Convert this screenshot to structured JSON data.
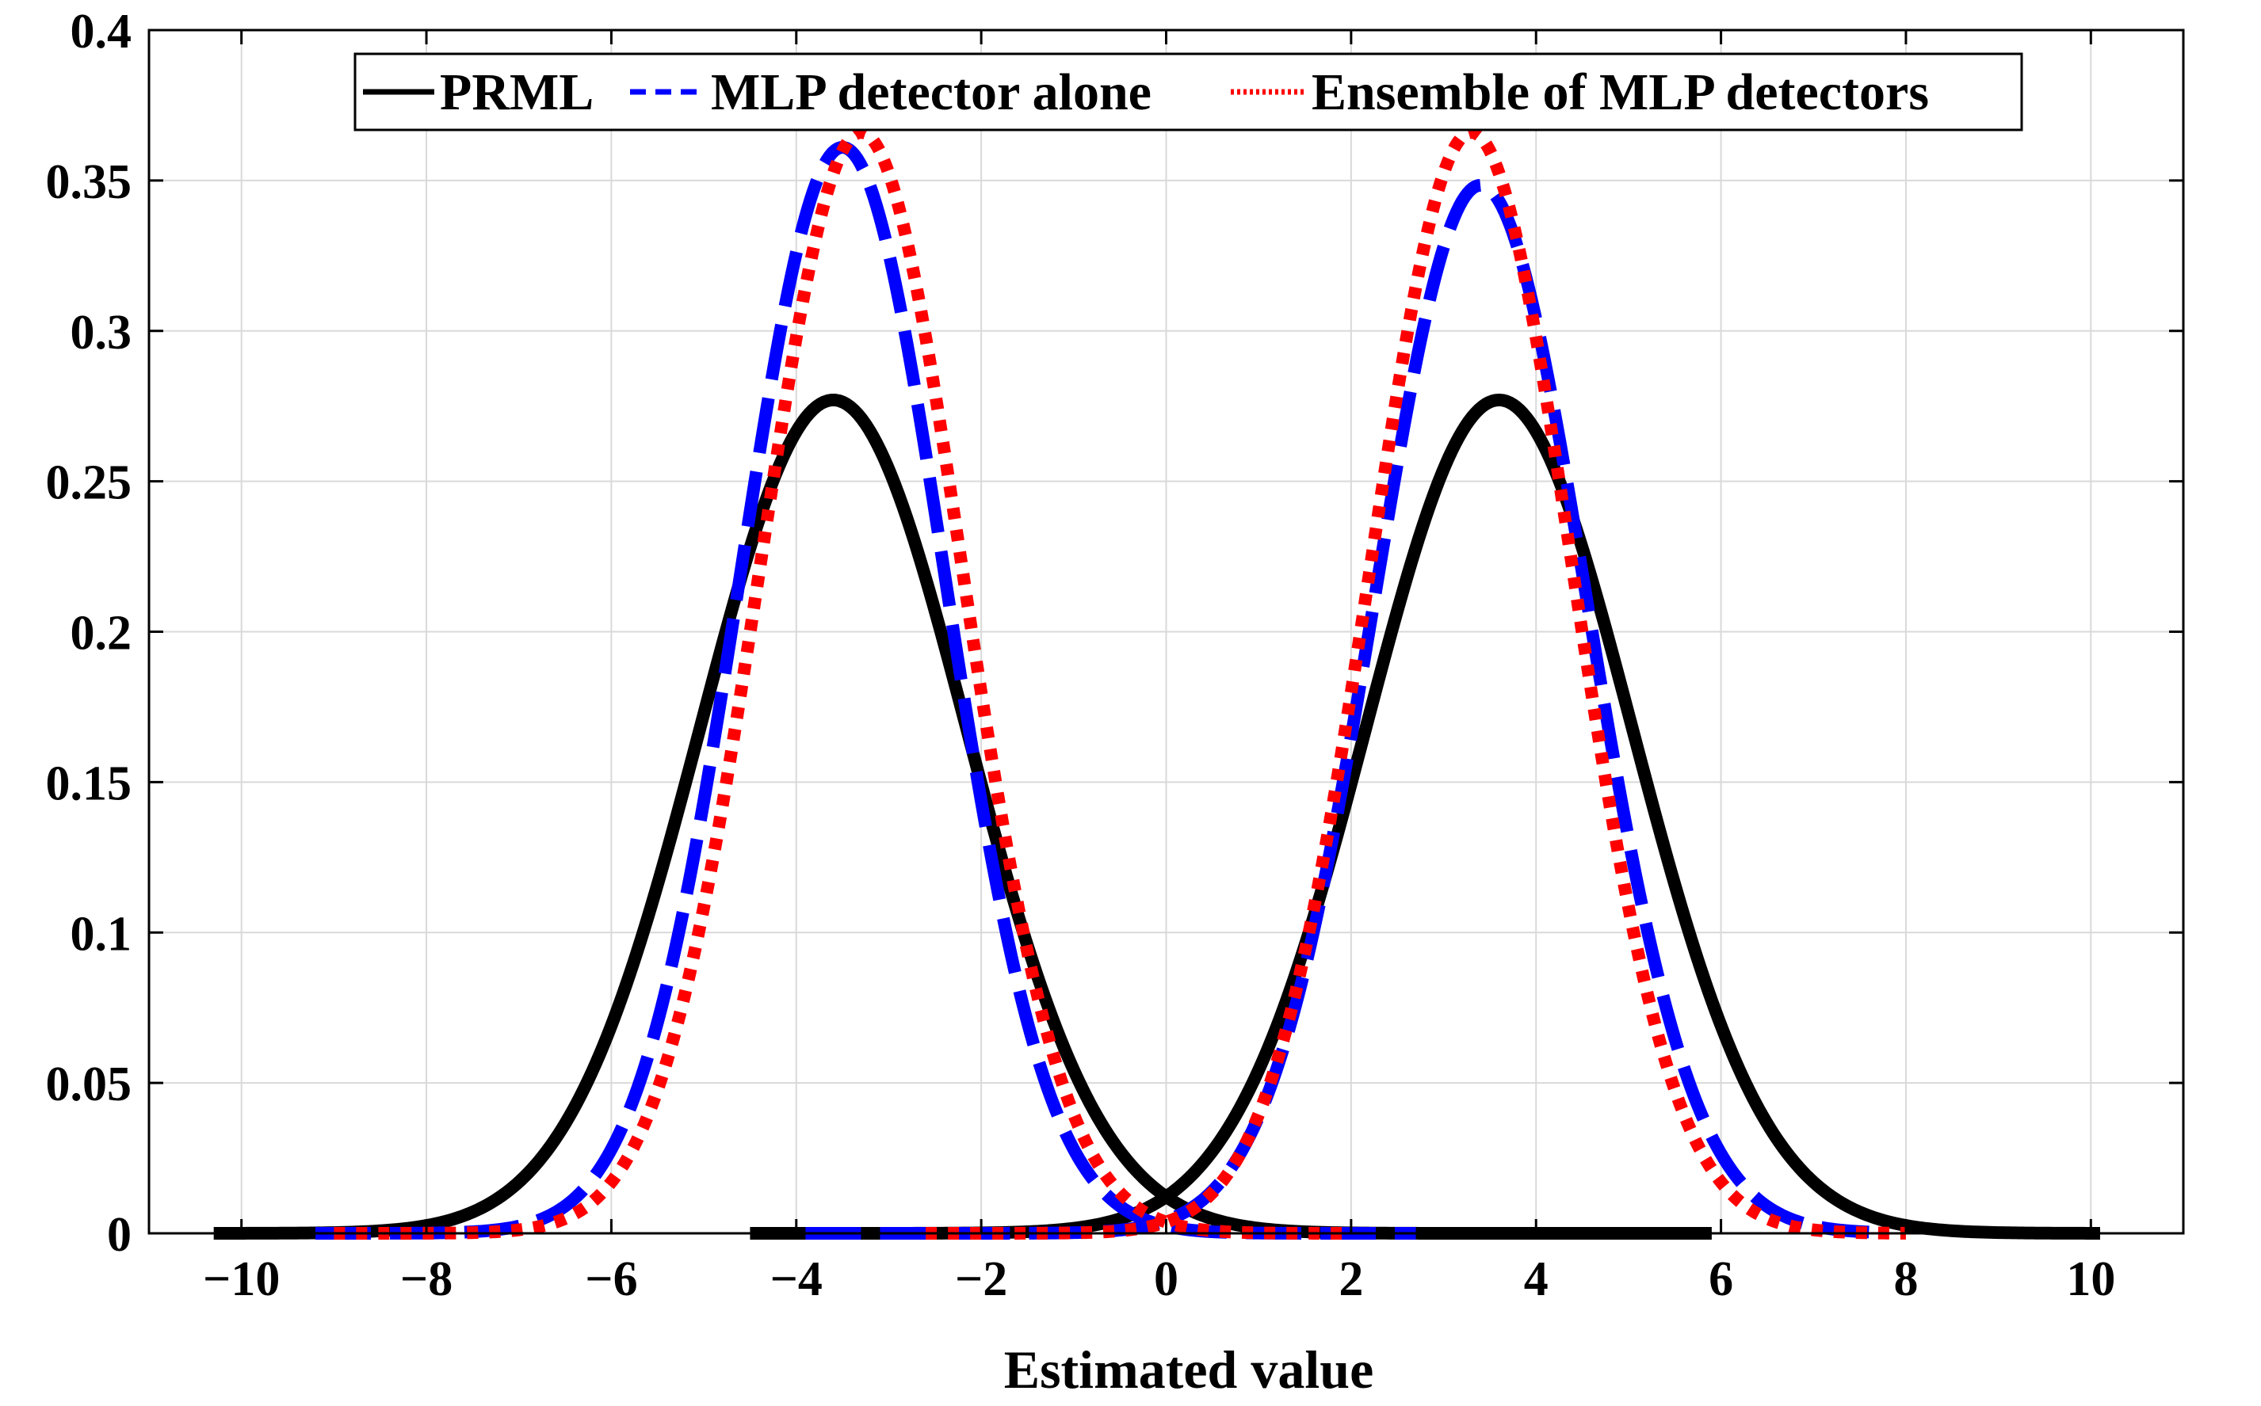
{
  "chart_data": {
    "type": "line",
    "title": "",
    "xlabel": "Estimated value",
    "ylabel": "",
    "xlim": [
      -11,
      11
    ],
    "ylim": [
      0,
      0.4
    ],
    "xticks": [
      -10,
      -8,
      -6,
      -4,
      -2,
      0,
      2,
      4,
      6,
      8,
      10
    ],
    "xtick_labels": [
      "−10",
      "−8",
      "−6",
      "−4",
      "−2",
      "0",
      "2",
      "4",
      "6",
      "8",
      "10"
    ],
    "yticks": [
      0,
      0.05,
      0.1,
      0.15,
      0.2,
      0.25,
      0.3,
      0.35,
      0.4
    ],
    "ytick_labels": [
      "0",
      "0.05",
      "0.1",
      "0.15",
      "0.2",
      "0.25",
      "0.3",
      "0.35",
      "0.4"
    ],
    "grid": true,
    "legend_position": "top-center",
    "series": [
      {
        "name": "PRML",
        "color": "#000000",
        "style": "solid",
        "components": [
          {
            "mean": -3.6,
            "sigma": 1.44,
            "x_range": [
              -10.3,
              5.9
            ]
          },
          {
            "mean": 3.6,
            "sigma": 1.44,
            "x_range": [
              -4.5,
              10.1
            ]
          }
        ]
      },
      {
        "name": "MLP detector alone",
        "color": "#0000ff",
        "style": "dashed",
        "components": [
          {
            "mean": -3.5,
            "sigma": 1.105,
            "x_range": [
              -9.2,
              2.7
            ]
          },
          {
            "mean": 3.4,
            "sigma": 1.145,
            "x_range": [
              -3.9,
              7.6
            ]
          }
        ]
      },
      {
        "name": "Ensemble of MLP detectors",
        "color": "#ff0000",
        "style": "dotted",
        "components": [
          {
            "mean": -3.3,
            "sigma": 1.09,
            "x_range": [
              -9.0,
              2.0
            ]
          },
          {
            "mean": 3.3,
            "sigma": 1.09,
            "x_range": [
              -2.6,
              8.0
            ]
          }
        ]
      }
    ]
  }
}
